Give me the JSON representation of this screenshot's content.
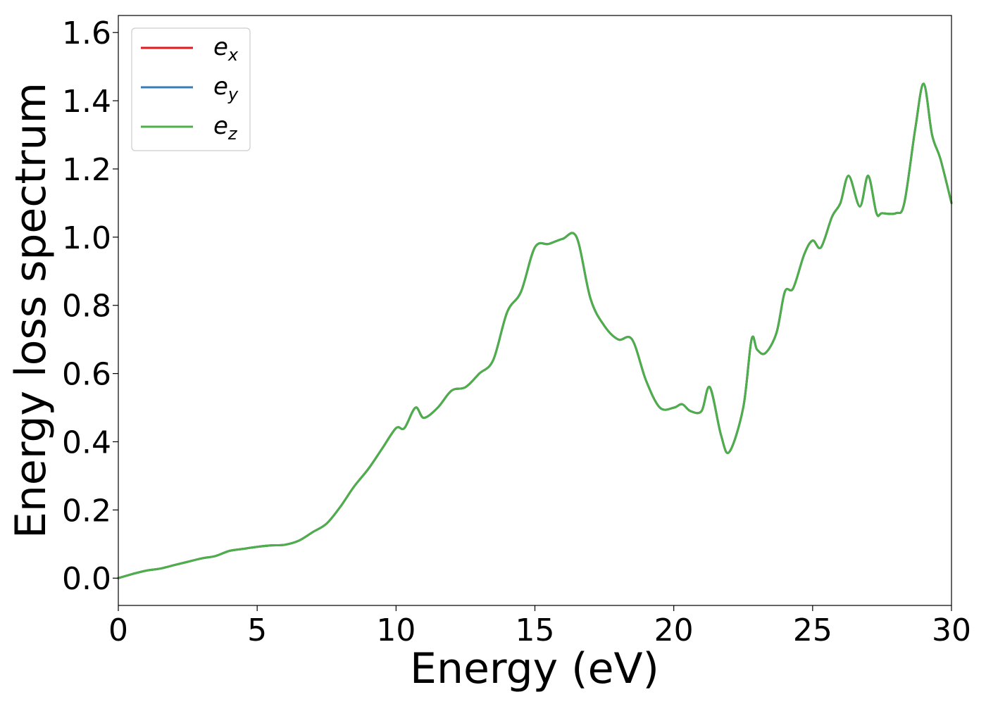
{
  "chart_data": {
    "type": "line",
    "title": "",
    "xlabel": "Energy (eV)",
    "ylabel": "Energy loss spectrum",
    "xlim": [
      0,
      30
    ],
    "ylim": [
      -0.08,
      1.65
    ],
    "xticks": [
      0,
      5,
      10,
      15,
      20,
      25,
      30
    ],
    "xtick_labels": [
      "0",
      "5",
      "10",
      "15",
      "20",
      "25",
      "30"
    ],
    "yticks": [
      0.0,
      0.2,
      0.4,
      0.6,
      0.8,
      1.0,
      1.2,
      1.4,
      1.6
    ],
    "ytick_labels": [
      "0.0",
      "0.2",
      "0.4",
      "0.6",
      "0.8",
      "1.0",
      "1.2",
      "1.4",
      "1.6"
    ],
    "grid": false,
    "legend_position": "upper-left",
    "x": [
      0,
      0.5,
      1.0,
      1.5,
      2.0,
      2.5,
      3.0,
      3.5,
      4.0,
      4.5,
      5.0,
      5.5,
      6.0,
      6.5,
      7.0,
      7.5,
      8.0,
      8.5,
      9.0,
      9.5,
      10.0,
      10.3,
      10.7,
      11.0,
      11.5,
      12.0,
      12.5,
      13.0,
      13.5,
      14.0,
      14.5,
      15.0,
      15.5,
      16.0,
      16.5,
      17.0,
      17.5,
      18.0,
      18.5,
      19.0,
      19.5,
      20.0,
      20.3,
      20.6,
      21.0,
      21.3,
      21.7,
      22.0,
      22.5,
      22.8,
      23.0,
      23.3,
      23.7,
      24.0,
      24.3,
      24.7,
      25.0,
      25.3,
      25.7,
      26.0,
      26.3,
      26.7,
      27.0,
      27.3,
      27.5,
      28.0,
      28.3,
      28.7,
      29.0,
      29.3,
      29.6,
      30.0
    ],
    "series": [
      {
        "name": "e_x",
        "label_main": "e",
        "label_sub": "x",
        "color": "#e41a1c",
        "values": [
          0.0,
          0.012,
          0.022,
          0.028,
          0.038,
          0.048,
          0.058,
          0.065,
          0.08,
          0.086,
          0.092,
          0.096,
          0.098,
          0.11,
          0.135,
          0.16,
          0.21,
          0.27,
          0.32,
          0.38,
          0.44,
          0.44,
          0.5,
          0.47,
          0.5,
          0.55,
          0.56,
          0.6,
          0.64,
          0.78,
          0.84,
          0.97,
          0.98,
          0.995,
          1.0,
          0.82,
          0.74,
          0.7,
          0.7,
          0.58,
          0.5,
          0.5,
          0.51,
          0.49,
          0.49,
          0.56,
          0.42,
          0.37,
          0.5,
          0.7,
          0.67,
          0.66,
          0.72,
          0.84,
          0.85,
          0.95,
          0.99,
          0.97,
          1.06,
          1.1,
          1.18,
          1.09,
          1.18,
          1.07,
          1.07,
          1.07,
          1.1,
          1.32,
          1.45,
          1.3,
          1.23,
          1.1
        ]
      },
      {
        "name": "e_y",
        "label_main": "e",
        "label_sub": "y",
        "color": "#377eb8",
        "values": [
          0.0,
          0.012,
          0.022,
          0.028,
          0.038,
          0.048,
          0.058,
          0.065,
          0.08,
          0.086,
          0.092,
          0.096,
          0.098,
          0.11,
          0.135,
          0.16,
          0.21,
          0.27,
          0.32,
          0.38,
          0.44,
          0.44,
          0.5,
          0.47,
          0.5,
          0.55,
          0.56,
          0.6,
          0.64,
          0.78,
          0.84,
          0.97,
          0.98,
          0.995,
          1.0,
          0.82,
          0.74,
          0.7,
          0.7,
          0.58,
          0.5,
          0.5,
          0.51,
          0.49,
          0.49,
          0.56,
          0.42,
          0.37,
          0.5,
          0.7,
          0.67,
          0.66,
          0.72,
          0.84,
          0.85,
          0.95,
          0.99,
          0.97,
          1.06,
          1.1,
          1.18,
          1.09,
          1.18,
          1.07,
          1.07,
          1.07,
          1.1,
          1.32,
          1.45,
          1.3,
          1.23,
          1.1
        ]
      },
      {
        "name": "e_z",
        "label_main": "e",
        "label_sub": "z",
        "color": "#4daf4a",
        "values": [
          0.0,
          0.012,
          0.022,
          0.028,
          0.038,
          0.048,
          0.058,
          0.065,
          0.08,
          0.086,
          0.092,
          0.096,
          0.098,
          0.11,
          0.135,
          0.16,
          0.21,
          0.27,
          0.32,
          0.38,
          0.44,
          0.44,
          0.5,
          0.47,
          0.5,
          0.55,
          0.56,
          0.6,
          0.64,
          0.78,
          0.84,
          0.97,
          0.98,
          0.995,
          1.0,
          0.82,
          0.74,
          0.7,
          0.7,
          0.58,
          0.5,
          0.5,
          0.51,
          0.49,
          0.49,
          0.56,
          0.42,
          0.37,
          0.5,
          0.7,
          0.67,
          0.66,
          0.72,
          0.84,
          0.85,
          0.95,
          0.99,
          0.97,
          1.06,
          1.1,
          1.18,
          1.09,
          1.18,
          1.07,
          1.07,
          1.07,
          1.1,
          1.32,
          1.45,
          1.3,
          1.23,
          1.1
        ]
      }
    ]
  }
}
